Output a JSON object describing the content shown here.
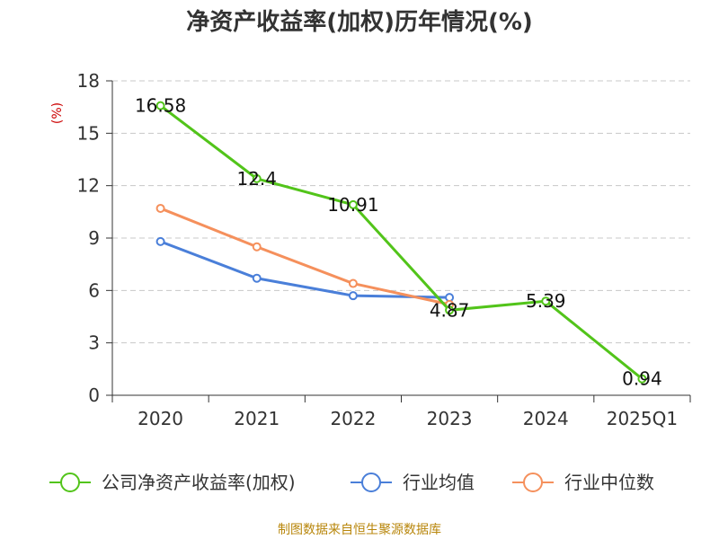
{
  "chart_data": {
    "type": "line",
    "title": "净资产收益率(加权)历年情况(%)",
    "ylabel": "(%)",
    "xlabel": "",
    "categories": [
      "2020",
      "2021",
      "2022",
      "2023",
      "2024",
      "2025Q1"
    ],
    "ylim": [
      0,
      18
    ],
    "yticks": [
      0,
      3,
      6,
      9,
      12,
      15,
      18
    ],
    "grid": true,
    "legend_position": "bottom",
    "series": [
      {
        "name": "公司净资产收益率(加权)",
        "color": "#52c41a",
        "values": [
          16.58,
          12.4,
          10.91,
          4.87,
          5.39,
          0.94
        ],
        "labels": [
          "16.58",
          "12.4",
          "10.91",
          "4.87",
          "5.39",
          "0.94"
        ]
      },
      {
        "name": "行业均值",
        "color": "#4a7fd9",
        "values": [
          8.8,
          6.7,
          5.7,
          5.6,
          null,
          null
        ]
      },
      {
        "name": "行业中位数",
        "color": "#f5905c",
        "values": [
          10.7,
          8.5,
          6.4,
          5.2,
          null,
          null
        ]
      }
    ]
  },
  "source": "制图数据来自恒生聚源数据库"
}
